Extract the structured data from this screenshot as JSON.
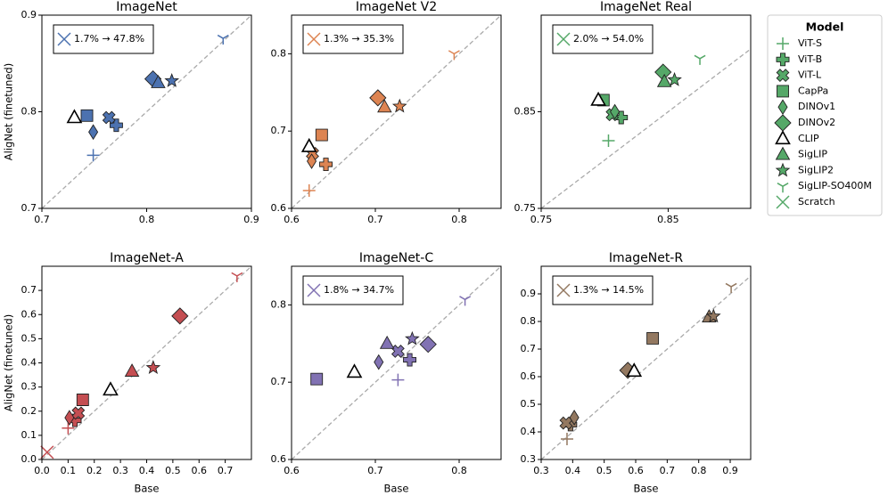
{
  "legend": {
    "title": "Model",
    "color": "#55a868",
    "names": [
      "ViT-S",
      "ViT-B",
      "ViT-L",
      "CapPa",
      "DINOv1",
      "DINOv2",
      "CLIP",
      "SigLIP",
      "SigLIP2",
      "SigLIP-SO400M",
      "Scratch"
    ],
    "markers": [
      "plus",
      "P",
      "X",
      "square",
      "thin_diamond",
      "diamond",
      "triangle_open",
      "triangle",
      "star",
      "tri_down",
      "x"
    ]
  },
  "chart_data": [
    {
      "type": "scatter",
      "title": "ImageNet",
      "color": "#4c72b0",
      "ylabel": "AligNet (finetuned)",
      "xlim": [
        0.7,
        0.9
      ],
      "ylim": [
        0.7,
        0.9
      ],
      "xticks": [
        0.7,
        0.8,
        0.9
      ],
      "yticks": [
        0.7,
        0.8,
        0.9
      ],
      "annotation": "1.7% → 47.8%",
      "x": [
        0.749,
        0.771,
        0.764,
        0.743,
        0.749,
        0.806,
        0.731,
        0.811,
        0.824,
        0.873,
        null
      ],
      "y": [
        0.755,
        0.786,
        0.794,
        0.796,
        0.779,
        0.834,
        0.794,
        0.83,
        0.832,
        0.876,
        null
      ]
    },
    {
      "type": "scatter",
      "title": "ImageNet V2",
      "color": "#dd8452",
      "xlim": [
        0.6,
        0.85
      ],
      "ylim": [
        0.6,
        0.85
      ],
      "xticks": [
        0.6,
        0.7,
        0.8
      ],
      "yticks": [
        0.6,
        0.7,
        0.8
      ],
      "annotation": "1.3% → 35.3%",
      "x": [
        0.621,
        0.641,
        0.625,
        0.636,
        0.624,
        0.703,
        0.621,
        0.711,
        0.729,
        0.794,
        null
      ],
      "y": [
        0.623,
        0.657,
        0.671,
        0.695,
        0.661,
        0.743,
        0.68,
        0.731,
        0.732,
        0.8,
        null
      ]
    },
    {
      "type": "scatter",
      "title": "ImageNet Real",
      "color": "#55a868",
      "xlim": [
        0.75,
        0.915
      ],
      "ylim": [
        0.75,
        0.95
      ],
      "xticks": [
        0.75,
        0.85
      ],
      "yticks": [
        0.75,
        0.85
      ],
      "annotation": "2.0% → 54.0%",
      "x": [
        0.803,
        0.813,
        0.806,
        0.799,
        0.808,
        0.846,
        0.795,
        0.847,
        0.855,
        0.875,
        null
      ],
      "y": [
        0.82,
        0.844,
        0.847,
        0.862,
        0.85,
        0.891,
        0.862,
        0.881,
        0.883,
        0.905,
        null
      ]
    },
    {
      "type": "scatter",
      "title": "ImageNet-A",
      "color": "#c44e52",
      "xlabel": "Base",
      "ylabel": "AligNet (finetuned)",
      "xlim": [
        0,
        0.8
      ],
      "ylim": [
        0,
        0.8
      ],
      "xticks": [
        {
          "value": 0,
          "label": "0.0"
        },
        0.1,
        0.2,
        0.3,
        0.4,
        0.5,
        0.6,
        0.7
      ],
      "yticks": [
        {
          "value": 0,
          "label": "0.0"
        },
        0.1,
        0.2,
        0.3,
        0.4,
        0.5,
        0.6,
        0.7
      ],
      "x": [
        0.1,
        0.126,
        0.139,
        0.156,
        0.105,
        0.527,
        0.262,
        0.344,
        0.425,
        0.745,
        0.02
      ],
      "y": [
        0.13,
        0.162,
        0.192,
        0.247,
        0.173,
        0.594,
        0.288,
        0.365,
        0.38,
        0.76,
        0.03
      ]
    },
    {
      "type": "scatter",
      "title": "ImageNet-C",
      "color": "#8172b3",
      "xlabel": "Base",
      "xlim": [
        0.6,
        0.85
      ],
      "ylim": [
        0.6,
        0.85
      ],
      "xticks": [
        0.6,
        0.7,
        0.8
      ],
      "yticks": [
        0.6,
        0.7,
        0.8
      ],
      "annotation": "1.8% → 34.7%",
      "x": [
        0.727,
        0.741,
        0.727,
        0.63,
        0.704,
        0.763,
        0.675,
        0.714,
        0.744,
        0.807,
        null
      ],
      "y": [
        0.703,
        0.729,
        0.74,
        0.704,
        0.726,
        0.749,
        0.713,
        0.75,
        0.756,
        0.807,
        null
      ]
    },
    {
      "type": "scatter",
      "title": "ImageNet-R",
      "color": "#937860",
      "xlabel": "Base",
      "xlim": [
        0.3,
        0.965
      ],
      "ylim": [
        0.3,
        1.0
      ],
      "xticks": [
        0.3,
        0.4,
        0.5,
        0.6,
        0.7,
        0.8,
        0.9
      ],
      "yticks": [
        0.3,
        0.4,
        0.5,
        0.6,
        0.7,
        0.8,
        0.9
      ],
      "annotation": "1.3% → 14.5%",
      "x": [
        0.382,
        0.393,
        0.379,
        0.654,
        0.405,
        0.575,
        0.595,
        0.833,
        0.847,
        0.903,
        null
      ],
      "y": [
        0.374,
        0.426,
        0.432,
        0.739,
        0.452,
        0.623,
        0.62,
        0.816,
        0.819,
        0.926,
        null
      ]
    }
  ]
}
